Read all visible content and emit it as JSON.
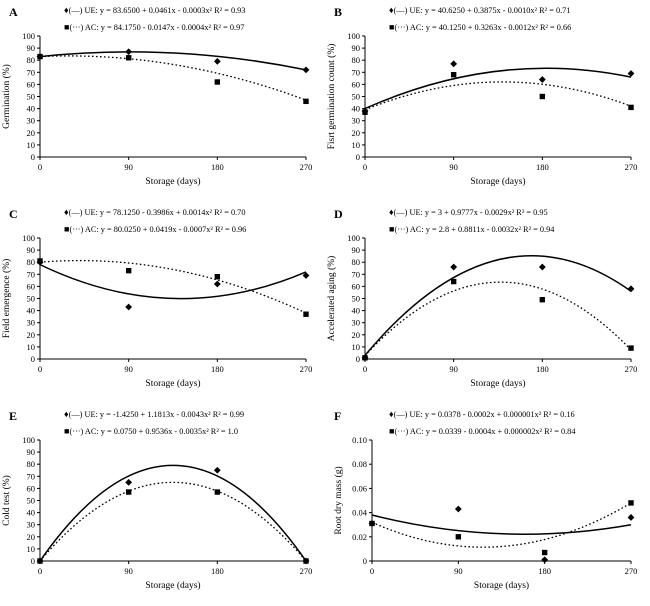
{
  "figure": {
    "background": "#ffffff",
    "ink_color": "#000000",
    "x_axis_label": "Storage (days)"
  },
  "chart_data": [
    {
      "panel_label": "A",
      "type": "scatter",
      "xlabel": "Storage (days)",
      "ylabel": "Germination (%)",
      "xlim": [
        0,
        270
      ],
      "x_ticks": [
        0,
        90,
        180,
        270
      ],
      "x_tick_labels": [
        "0",
        "90",
        "180",
        "270"
      ],
      "ylim": [
        0,
        100
      ],
      "y_ticks": [
        0,
        10,
        20,
        30,
        40,
        50,
        60,
        70,
        80,
        90,
        100
      ],
      "y_tick_labels": [
        "0",
        "10",
        "20",
        "30",
        "40",
        "50",
        "60",
        "70",
        "80",
        "90",
        "100"
      ],
      "grid": false,
      "legend_position": "top",
      "series": [
        {
          "name": "UE",
          "marker": "diamond",
          "marker_char": "♦",
          "line_style": "solid",
          "legend": "(—) UE: y = 83.6500 + 0.0461x - 0.0003x² R² = 0.93",
          "x": [
            0,
            90,
            180,
            270
          ],
          "y": [
            83,
            87,
            79,
            72
          ],
          "fit_y_at_0_135_270": [
            83,
            86,
            72
          ]
        },
        {
          "name": "AC",
          "marker": "square",
          "marker_char": "■",
          "line_style": "dotted",
          "legend": "(···) AC: y = 84.1750 - 0.0147x - 0.0004x² R² = 0.97",
          "x": [
            0,
            90,
            180,
            270
          ],
          "y": [
            83,
            82,
            62,
            46
          ],
          "fit_y_at_0_135_270": [
            83,
            76.5,
            47
          ]
        }
      ]
    },
    {
      "panel_label": "B",
      "type": "scatter",
      "xlabel": "Storage (days)",
      "ylabel": "Fisrt germination count (%)",
      "xlim": [
        0,
        270
      ],
      "x_ticks": [
        0,
        90,
        180,
        270
      ],
      "x_tick_labels": [
        "0",
        "90",
        "180",
        "270"
      ],
      "ylim": [
        0,
        100
      ],
      "y_ticks": [
        0,
        10,
        20,
        30,
        40,
        50,
        60,
        70,
        80,
        90,
        100
      ],
      "y_tick_labels": [
        "0",
        "10",
        "20",
        "30",
        "40",
        "50",
        "60",
        "70",
        "80",
        "90",
        "100"
      ],
      "grid": false,
      "legend_position": "top",
      "series": [
        {
          "name": "UE",
          "marker": "diamond",
          "marker_char": "♦",
          "line_style": "solid",
          "legend": "(—) UE: y = 40.6250 + 0.3875x - 0.0010x² R² = 0.71",
          "x": [
            0,
            90,
            180,
            270
          ],
          "y": [
            38,
            77,
            64,
            69
          ],
          "fit_y_at_0_135_270": [
            40,
            71,
            66
          ]
        },
        {
          "name": "AC",
          "marker": "square",
          "marker_char": "■",
          "line_style": "dotted",
          "legend": "(···) AC: y = 40.1250 + 0.3263x - 0.0012x² R² = 0.66",
          "x": [
            0,
            90,
            180,
            270
          ],
          "y": [
            37,
            68,
            50,
            41
          ],
          "fit_y_at_0_135_270": [
            39,
            62,
            42
          ]
        }
      ]
    },
    {
      "panel_label": "C",
      "type": "scatter",
      "xlabel": "Storage (days)",
      "ylabel": "Field emergence (%)",
      "xlim": [
        0,
        270
      ],
      "x_ticks": [
        0,
        90,
        180,
        270
      ],
      "x_tick_labels": [
        "0",
        "90",
        "180",
        "270"
      ],
      "ylim": [
        0,
        100
      ],
      "y_ticks": [
        0,
        10,
        20,
        30,
        40,
        50,
        60,
        70,
        80,
        90,
        100
      ],
      "y_tick_labels": [
        "0",
        "10",
        "20",
        "30",
        "40",
        "50",
        "60",
        "70",
        "80",
        "90",
        "100"
      ],
      "grid": false,
      "legend_position": "top",
      "series": [
        {
          "name": "UE",
          "marker": "diamond",
          "marker_char": "♦",
          "line_style": "solid",
          "legend": "(—) UE: y = 78.1250 - 0.3986x + 0.0014x² R² = 0.70",
          "x": [
            0,
            90,
            180,
            270
          ],
          "y": [
            80,
            43,
            62,
            69
          ],
          "fit_y_at_0_135_270": [
            78,
            50,
            72
          ]
        },
        {
          "name": "AC",
          "marker": "square",
          "marker_char": "■",
          "line_style": "dotted",
          "legend": "(···) AC: y = 80.0250 + 0.0419x - 0.0007x² R² = 0.96",
          "x": [
            0,
            90,
            180,
            270
          ],
          "y": [
            81,
            73,
            68,
            37
          ],
          "fit_y_at_0_135_270": [
            80,
            74,
            38
          ]
        }
      ]
    },
    {
      "panel_label": "D",
      "type": "scatter",
      "xlabel": "Storage (days)",
      "ylabel": "Accelerated aging (%)",
      "xlim": [
        0,
        270
      ],
      "x_ticks": [
        0,
        90,
        180,
        270
      ],
      "x_tick_labels": [
        "0",
        "90",
        "180",
        "270"
      ],
      "ylim": [
        0,
        100
      ],
      "y_ticks": [
        0,
        10,
        20,
        30,
        40,
        50,
        60,
        70,
        80,
        90,
        100
      ],
      "y_tick_labels": [
        "0",
        "10",
        "20",
        "30",
        "40",
        "50",
        "60",
        "70",
        "80",
        "90",
        "100"
      ],
      "grid": false,
      "legend_position": "top",
      "series": [
        {
          "name": "UE",
          "marker": "diamond",
          "marker_char": "♦",
          "line_style": "solid",
          "legend": "(—) UE: y = 3 + 0.9777x - 0.0029x² R² = 0.95",
          "x": [
            0,
            90,
            180,
            270
          ],
          "y": [
            1,
            76,
            76,
            58
          ],
          "fit_y_at_0_135_270": [
            3,
            82,
            56
          ]
        },
        {
          "name": "AC",
          "marker": "square",
          "marker_char": "■",
          "line_style": "dotted",
          "legend": "(···) AC: y = 2.8 + 0.8811x - 0.0032x² R² = 0.94",
          "x": [
            0,
            90,
            180,
            270
          ],
          "y": [
            1,
            64,
            49,
            9
          ],
          "fit_y_at_0_135_270": [
            2.8,
            63.5,
            7.5
          ]
        }
      ]
    },
    {
      "panel_label": "E",
      "type": "scatter",
      "xlabel": "Storage (days)",
      "ylabel": "Cold test (%)",
      "xlim": [
        0,
        270
      ],
      "x_ticks": [
        0,
        90,
        180,
        270
      ],
      "x_tick_labels": [
        "0",
        "90",
        "180",
        "270"
      ],
      "ylim": [
        0,
        100
      ],
      "y_ticks": [
        0,
        10,
        20,
        30,
        40,
        50,
        60,
        70,
        80,
        90,
        100
      ],
      "y_tick_labels": [
        "0",
        "10",
        "20",
        "30",
        "40",
        "50",
        "60",
        "70",
        "80",
        "90",
        "100"
      ],
      "grid": false,
      "legend_position": "top",
      "series": [
        {
          "name": "UE",
          "marker": "diamond",
          "marker_char": "♦",
          "line_style": "solid",
          "legend": "(—) UE: y = -1.4250 + 1.1813x - 0.0043x² R² = 0.99",
          "x": [
            0,
            90,
            180,
            270
          ],
          "y": [
            0,
            65,
            75,
            0
          ],
          "fit_y_at_0_135_270": [
            0,
            79,
            0
          ]
        },
        {
          "name": "AC",
          "marker": "square",
          "marker_char": "■",
          "line_style": "dotted",
          "legend": "(···) AC: y = 0.0750 + 0.9536x - 0.0035x² R² = 1.0",
          "x": [
            0,
            90,
            180,
            270
          ],
          "y": [
            0,
            57,
            57,
            0
          ],
          "fit_y_at_0_135_270": [
            0,
            65,
            0
          ]
        }
      ]
    },
    {
      "panel_label": "F",
      "type": "scatter",
      "xlabel": "Storage (days)",
      "ylabel": "Root dry mass (g)",
      "xlim": [
        0,
        270
      ],
      "x_ticks": [
        0,
        90,
        180,
        270
      ],
      "x_tick_labels": [
        "0",
        "90",
        "180",
        "270"
      ],
      "ylim": [
        0,
        0.1
      ],
      "y_ticks": [
        0,
        0.02,
        0.04,
        0.06,
        0.08,
        0.1
      ],
      "y_tick_labels": [
        "0",
        "0.02",
        "0.04",
        "0.06",
        "0.08",
        "0.10"
      ],
      "grid": false,
      "legend_position": "top",
      "series": [
        {
          "name": "UE",
          "marker": "diamond",
          "marker_char": "♦",
          "line_style": "solid",
          "legend": "(—) UE: y = 0.0378 - 0.0002x + 0.000001x² R² = 0.16",
          "x": [
            0,
            90,
            180,
            270
          ],
          "y": [
            0.031,
            0.043,
            0.001,
            0.036
          ],
          "fit_y_at_0_135_270": [
            0.038,
            0.0225,
            0.03
          ]
        },
        {
          "name": "AC",
          "marker": "square",
          "marker_char": "■",
          "line_style": "dotted",
          "legend": "(···) AC: y = 0.0339 - 0.0004x + 0.000002x² R² = 0.84",
          "x": [
            0,
            90,
            180,
            270
          ],
          "y": [
            0.031,
            0.02,
            0.007,
            0.048
          ],
          "fit_y_at_0_135_270": [
            0.032,
            0.012,
            0.048
          ]
        }
      ]
    }
  ]
}
